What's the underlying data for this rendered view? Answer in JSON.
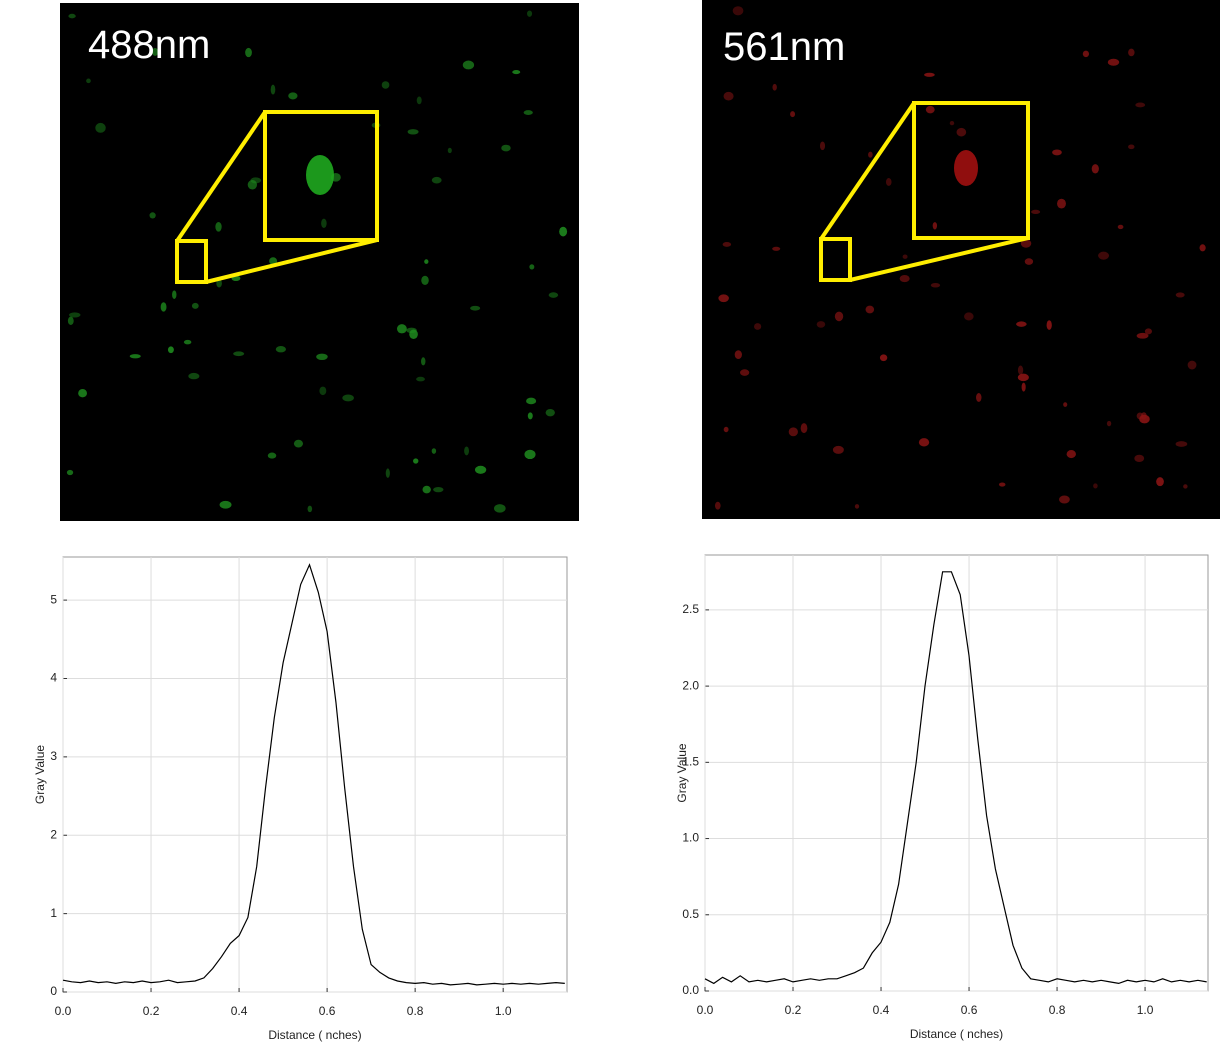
{
  "images": [
    {
      "label": "488nm"
    },
    {
      "label": "561nm"
    }
  ],
  "chart_data": [
    {
      "type": "line",
      "x_label": "Distance ( nches)",
      "y_label": "Gray Value",
      "color": "#000000",
      "grid": true,
      "xlim": [
        0,
        1.145
      ],
      "ylim": [
        0,
        5.55
      ],
      "xticks": [
        {
          "value": 0,
          "label": "0.0"
        },
        0.2,
        0.4,
        0.6,
        0.8,
        {
          "value": 1,
          "label": "1.0"
        }
      ],
      "yticks": [
        0,
        1,
        2,
        3,
        4,
        5
      ],
      "x": [
        0,
        0.02,
        0.04,
        0.06,
        0.08,
        0.1,
        0.12,
        0.14,
        0.16,
        0.18,
        0.2,
        0.22,
        0.24,
        0.26,
        0.28,
        0.3,
        0.32,
        0.34,
        0.36,
        0.38,
        0.4,
        0.42,
        0.44,
        0.46,
        0.48,
        0.5,
        0.52,
        0.54,
        0.56,
        0.58,
        0.6,
        0.62,
        0.64,
        0.66,
        0.68,
        0.7,
        0.72,
        0.74,
        0.76,
        0.78,
        0.8,
        0.82,
        0.84,
        0.86,
        0.88,
        0.9,
        0.92,
        0.94,
        0.96,
        0.98,
        1,
        1.02,
        1.04,
        1.06,
        1.08,
        1.1,
        1.12,
        1.14
      ],
      "values": [
        0.15,
        0.13,
        0.12,
        0.14,
        0.12,
        0.13,
        0.11,
        0.13,
        0.12,
        0.14,
        0.12,
        0.13,
        0.15,
        0.12,
        0.13,
        0.14,
        0.18,
        0.3,
        0.45,
        0.62,
        0.72,
        0.95,
        1.6,
        2.6,
        3.5,
        4.2,
        4.7,
        5.2,
        5.45,
        5.1,
        4.6,
        3.7,
        2.6,
        1.6,
        0.8,
        0.35,
        0.25,
        0.18,
        0.14,
        0.12,
        0.11,
        0.12,
        0.1,
        0.11,
        0.09,
        0.1,
        0.11,
        0.09,
        0.1,
        0.11,
        0.1,
        0.11,
        0.1,
        0.11,
        0.1,
        0.11,
        0.12,
        0.11
      ]
    },
    {
      "type": "line",
      "x_label": "Distance ( nches)",
      "y_label": "Gray Value",
      "color": "#000000",
      "grid": true,
      "xlim": [
        0,
        1.143
      ],
      "ylim": [
        0,
        2.86
      ],
      "xticks": [
        {
          "value": 0,
          "label": "0.0"
        },
        0.2,
        0.4,
        0.6,
        0.8,
        {
          "value": 1,
          "label": "1.0"
        }
      ],
      "yticks": [
        {
          "value": 0,
          "label": "0.0"
        },
        0.5,
        {
          "value": 1,
          "label": "1.0"
        },
        1.5,
        {
          "value": 2,
          "label": "2.0"
        },
        2.5
      ],
      "x": [
        0,
        0.02,
        0.04,
        0.06,
        0.08,
        0.1,
        0.12,
        0.14,
        0.16,
        0.18,
        0.2,
        0.22,
        0.24,
        0.26,
        0.28,
        0.3,
        0.32,
        0.34,
        0.36,
        0.38,
        0.4,
        0.42,
        0.44,
        0.46,
        0.48,
        0.5,
        0.52,
        0.54,
        0.56,
        0.58,
        0.6,
        0.62,
        0.64,
        0.66,
        0.68,
        0.7,
        0.72,
        0.74,
        0.76,
        0.78,
        0.8,
        0.82,
        0.84,
        0.86,
        0.88,
        0.9,
        0.92,
        0.94,
        0.96,
        0.98,
        1,
        1.02,
        1.04,
        1.06,
        1.08,
        1.1,
        1.12,
        1.14
      ],
      "values": [
        0.08,
        0.05,
        0.09,
        0.06,
        0.1,
        0.06,
        0.07,
        0.06,
        0.07,
        0.08,
        0.06,
        0.07,
        0.08,
        0.07,
        0.08,
        0.08,
        0.1,
        0.12,
        0.15,
        0.25,
        0.32,
        0.45,
        0.7,
        1.1,
        1.5,
        2.0,
        2.4,
        2.75,
        2.75,
        2.6,
        2.2,
        1.65,
        1.15,
        0.8,
        0.55,
        0.3,
        0.15,
        0.08,
        0.07,
        0.06,
        0.08,
        0.07,
        0.06,
        0.07,
        0.06,
        0.07,
        0.06,
        0.05,
        0.07,
        0.06,
        0.07,
        0.06,
        0.08,
        0.06,
        0.07,
        0.06,
        0.07,
        0.06
      ]
    }
  ]
}
